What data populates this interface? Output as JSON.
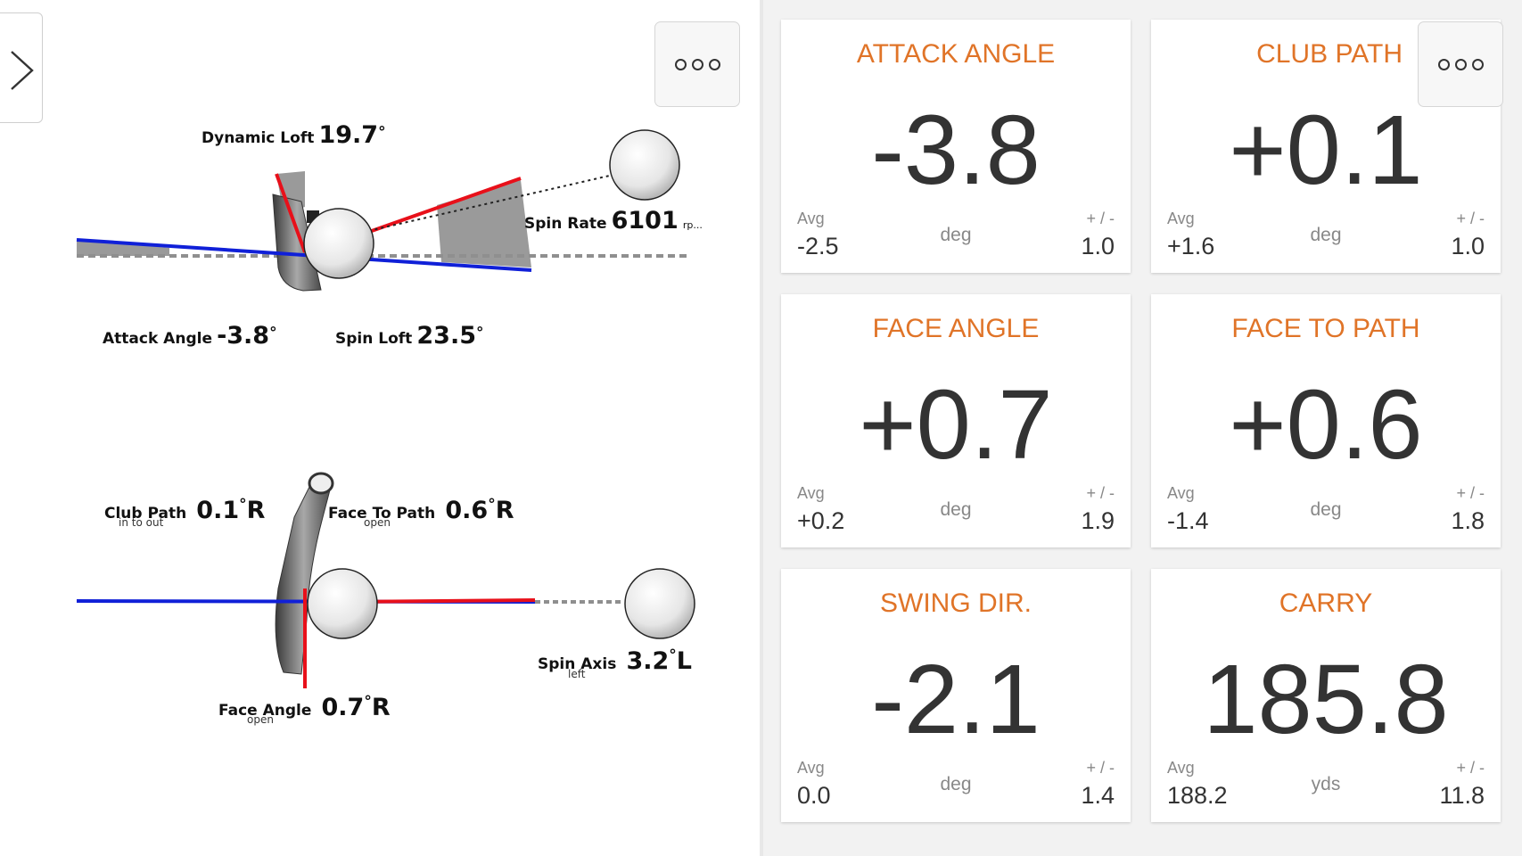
{
  "diagram": {
    "dynamic_loft": {
      "label": "Dynamic Loft",
      "value": "19.7",
      "deg": "°"
    },
    "spin_rate": {
      "label": "Spin Rate",
      "value": "6101",
      "unit": "rp..."
    },
    "attack_angle": {
      "label": "Attack Angle",
      "value": "-3.8",
      "deg": "°"
    },
    "spin_loft": {
      "label": "Spin Loft",
      "value": "23.5",
      "deg": "°"
    },
    "club_path": {
      "label": "Club Path",
      "sub": "in to out",
      "value": "0.1",
      "deg": "°",
      "dir": "R"
    },
    "face_to_path": {
      "label": "Face To Path",
      "sub": "open",
      "value": "0.6",
      "deg": "°",
      "dir": "R"
    },
    "spin_axis": {
      "label": "Spin Axis",
      "sub": "left",
      "value": "3.2",
      "deg": "°",
      "dir": "L"
    },
    "face_angle": {
      "label": "Face Angle",
      "sub": "open",
      "value": "0.7",
      "deg": "°",
      "dir": "R"
    },
    "colors": {
      "red": "#e8101a",
      "blue": "#1020d8",
      "gray": "#8f8f8f"
    }
  },
  "cards": [
    {
      "title": "ATTACK ANGLE",
      "value": "-3.8",
      "avg_label": "Avg",
      "avg": "-2.5",
      "unit": "deg",
      "pm_label": "+ / -",
      "pm": "1.0"
    },
    {
      "title": "CLUB PATH",
      "value": "+0.1",
      "avg_label": "Avg",
      "avg": "+1.6",
      "unit": "deg",
      "pm_label": "+ / -",
      "pm": "1.0"
    },
    {
      "title": "FACE ANGLE",
      "value": "+0.7",
      "avg_label": "Avg",
      "avg": "+0.2",
      "unit": "deg",
      "pm_label": "+ / -",
      "pm": "1.9"
    },
    {
      "title": "FACE TO PATH",
      "value": "+0.6",
      "avg_label": "Avg",
      "avg": "-1.4",
      "unit": "deg",
      "pm_label": "+ / -",
      "pm": "1.8"
    },
    {
      "title": "SWING DIR.",
      "value": "-2.1",
      "avg_label": "Avg",
      "avg": "0.0",
      "unit": "deg",
      "pm_label": "+ / -",
      "pm": "1.4"
    },
    {
      "title": "CARRY",
      "value": "185.8",
      "avg_label": "Avg",
      "avg": "188.2",
      "unit": "yds",
      "pm_label": "+ / -",
      "pm": "11.8"
    }
  ],
  "accent_color": "#e07428",
  "icons": {
    "expand": "chevron-right-icon",
    "more": "more-dots-icon"
  }
}
